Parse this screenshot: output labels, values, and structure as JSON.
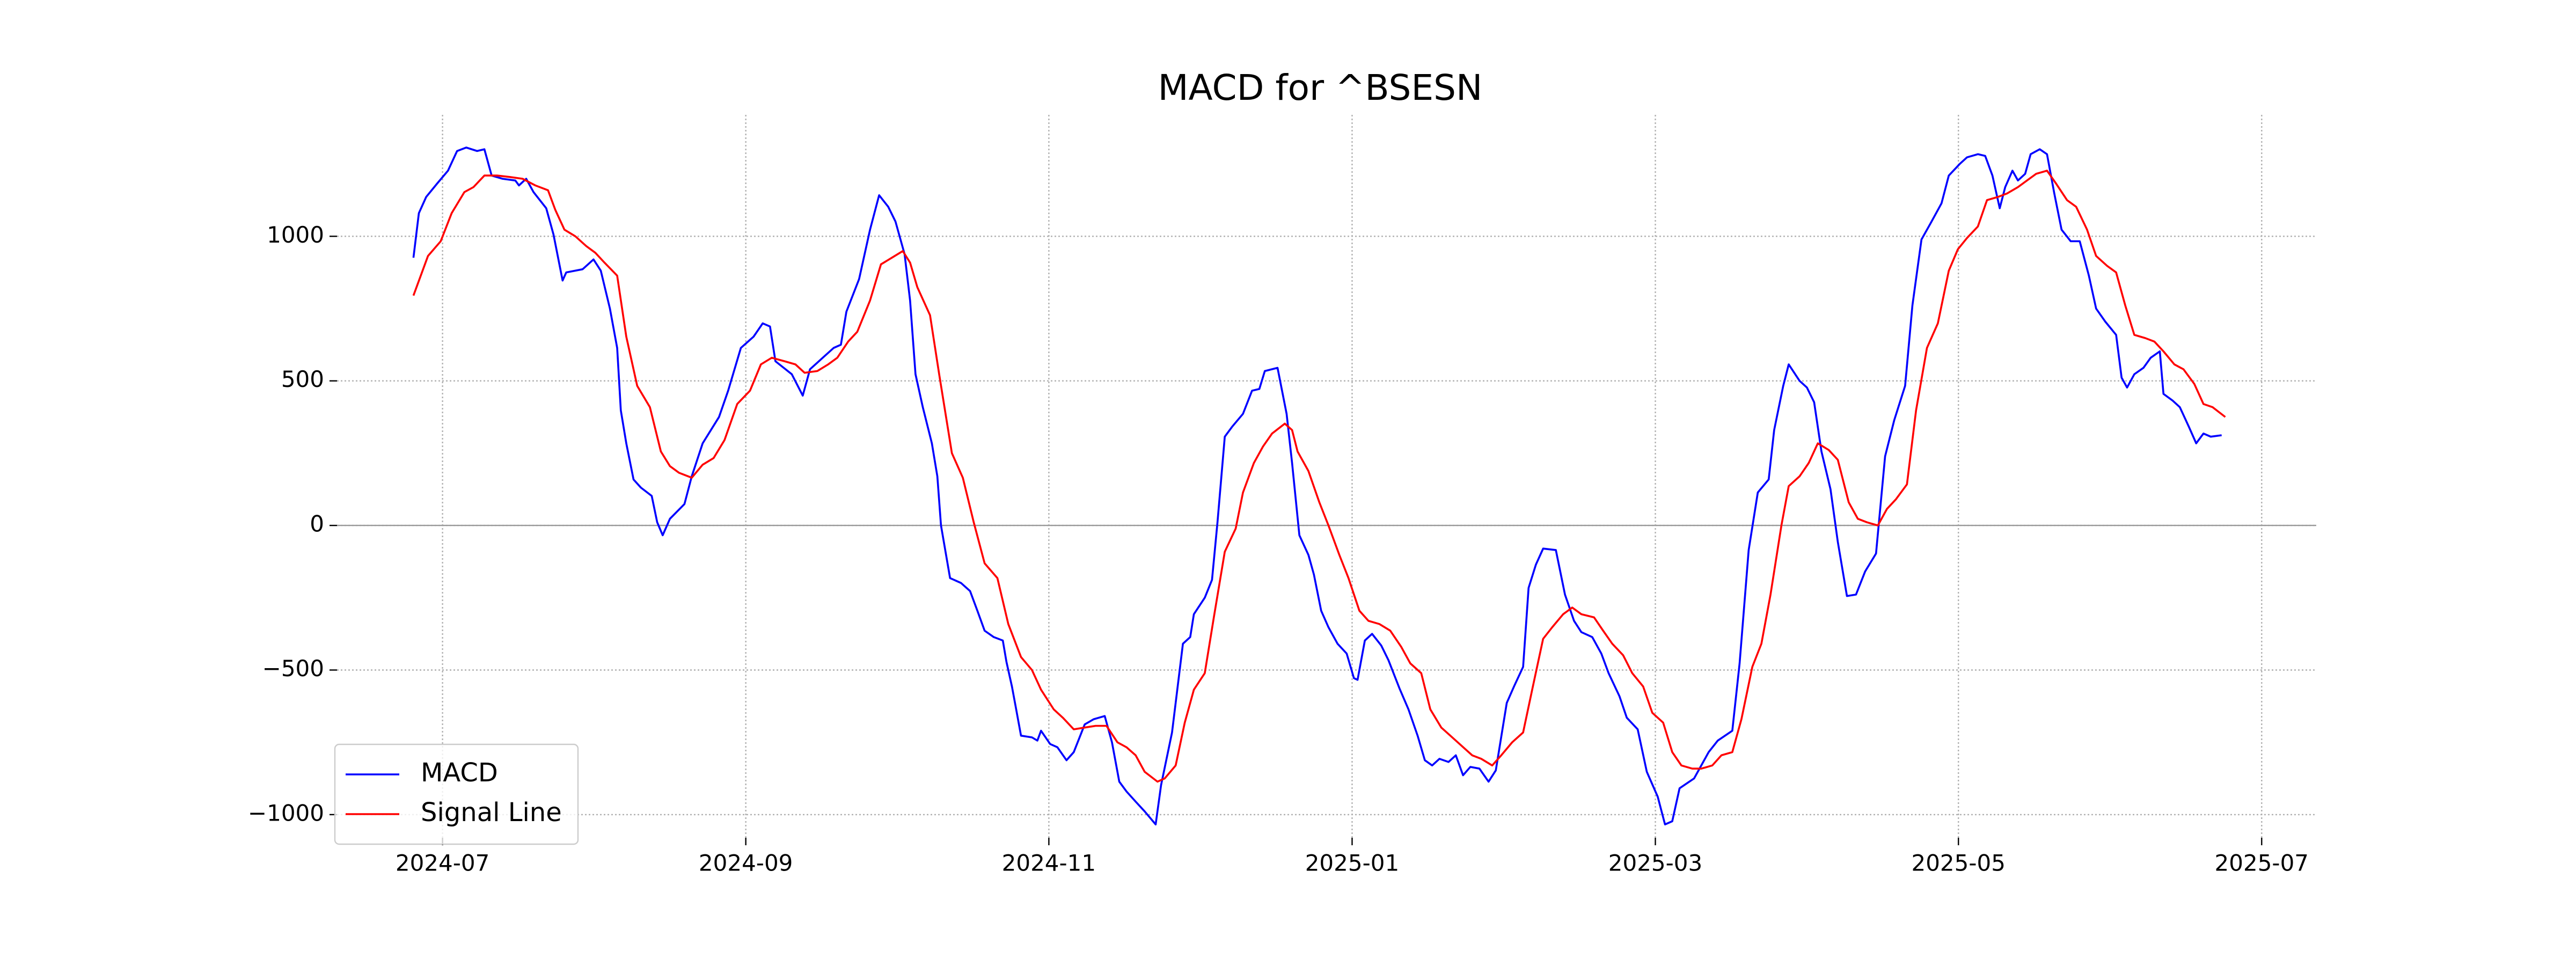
{
  "chart_data": {
    "type": "line",
    "title": "MACD for ^BSESN",
    "xlim": [
      2024.442,
      2025.53
    ],
    "xticks": [
      {
        "value": 2024.5,
        "label": "2024-07"
      },
      {
        "value": 2024.6667,
        "label": "2024-09"
      },
      {
        "value": 2024.8333,
        "label": "2024-11"
      },
      {
        "value": 2025.0,
        "label": "2025-01"
      },
      {
        "value": 2025.1667,
        "label": "2025-03"
      },
      {
        "value": 2025.3333,
        "label": "2025-05"
      },
      {
        "value": 2025.5,
        "label": "2025-07"
      }
    ],
    "ylim": [
      -1080,
      1420
    ],
    "yticks": [
      {
        "value": -1000,
        "label": "−1000"
      },
      {
        "value": -500,
        "label": "−500"
      },
      0,
      500,
      1000
    ],
    "grid": true,
    "zero_line": true,
    "legend_loc": "lower left",
    "series": [
      {
        "name": "MACD",
        "color": "#0000ff",
        "x": [
          2024.484,
          2024.487,
          2024.491,
          2024.497,
          2024.503,
          2024.508,
          2024.513,
          2024.519,
          2024.523,
          2024.527,
          2024.533,
          2024.54,
          2024.542,
          2024.546,
          2024.55,
          2024.557,
          2024.561,
          2024.566,
          2024.568,
          2024.577,
          2024.583,
          2024.587,
          2024.592,
          2024.596,
          2024.598,
          2024.601,
          2024.605,
          2024.609,
          2024.615,
          2024.618,
          2024.621,
          2024.625,
          2024.633,
          2024.637,
          2024.643,
          2024.652,
          2024.657,
          2024.664,
          2024.671,
          2024.676,
          2024.68,
          2024.683,
          2024.692,
          2024.698,
          2024.702,
          2024.709,
          2024.715,
          2024.719,
          2024.722,
          2024.729,
          2024.735,
          2024.74,
          2024.745,
          2024.749,
          2024.754,
          2024.757,
          2024.76,
          2024.764,
          2024.769,
          2024.772,
          2024.774,
          2024.779,
          2024.785,
          2024.79,
          2024.794,
          2024.798,
          2024.803,
          2024.808,
          2024.81,
          2024.813,
          2024.815,
          2024.818,
          2024.824,
          2024.827,
          2024.829,
          2024.834,
          2024.838,
          2024.843,
          2024.847,
          2024.853,
          2024.858,
          2024.864,
          2024.868,
          2024.872,
          2024.876,
          2024.881,
          2024.886,
          2024.892,
          2024.895,
          2024.901,
          2024.907,
          2024.911,
          2024.913,
          2024.919,
          2024.923,
          2024.926,
          2024.93,
          2024.934,
          2024.94,
          2024.945,
          2024.949,
          2024.952,
          2024.959,
          2024.964,
          2024.967,
          2024.971,
          2024.976,
          2024.979,
          2024.983,
          2024.987,
          2024.992,
          2024.997,
          2025.001,
          2025.003,
          2025.007,
          2025.011,
          2025.016,
          2025.02,
          2025.026,
          2025.031,
          2025.036,
          2025.04,
          2025.044,
          2025.048,
          2025.053,
          2025.057,
          2025.061,
          2025.065,
          2025.07,
          2025.075,
          2025.079,
          2025.085,
          2025.089,
          2025.094,
          2025.097,
          2025.101,
          2025.105,
          2025.112,
          2025.117,
          2025.122,
          2025.126,
          2025.132,
          2025.137,
          2025.141,
          2025.147,
          2025.151,
          2025.157,
          2025.162,
          2025.168,
          2025.172,
          2025.176,
          2025.18,
          2025.188,
          2025.196,
          2025.201,
          2025.209,
          2025.213,
          2025.218,
          2025.223,
          2025.229,
          2025.232,
          2025.237,
          2025.24,
          2025.246,
          2025.25,
          2025.254,
          2025.258,
          2025.263,
          2025.267,
          2025.272,
          2025.277,
          2025.282,
          2025.288,
          2025.293,
          2025.298,
          2025.304,
          2025.308,
          2025.313,
          2025.318,
          2025.324,
          2025.328,
          2025.334,
          2025.338,
          2025.344,
          2025.348,
          2025.352,
          2025.356,
          2025.359,
          2025.363,
          2025.366,
          2025.37,
          2025.373,
          2025.378,
          2025.382,
          2025.386,
          2025.39,
          2025.395,
          2025.4,
          2025.405,
          2025.409,
          2025.414,
          2025.42,
          2025.423,
          2025.426,
          2025.43,
          2025.435,
          2025.439,
          2025.444,
          2025.446,
          2025.451,
          2025.455,
          2025.46,
          2025.464,
          2025.468,
          2025.472,
          2025.478
        ],
        "values": [
          926,
          1080,
          1136,
          1182,
          1227,
          1295,
          1307,
          1295,
          1301,
          1210,
          1199,
          1193,
          1176,
          1199,
          1153,
          1097,
          1006,
          847,
          875,
          886,
          920,
          881,
          750,
          614,
          398,
          284,
          159,
          131,
          102,
          11,
          -34,
          23,
          74,
          170,
          284,
          375,
          466,
          614,
          653,
          699,
          688,
          568,
          523,
          449,
          540,
          580,
          614,
          625,
          739,
          852,
          1023,
          1142,
          1102,
          1051,
          938,
          778,
          523,
          409,
          284,
          170,
          0,
          -182,
          -199,
          -227,
          -295,
          -364,
          -386,
          -398,
          -472,
          -557,
          -625,
          -727,
          -733,
          -744,
          -710,
          -756,
          -767,
          -812,
          -784,
          -688,
          -670,
          -659,
          -750,
          -886,
          -920,
          -955,
          -989,
          -1034,
          -898,
          -716,
          -409,
          -386,
          -307,
          -250,
          -188,
          11,
          307,
          341,
          386,
          466,
          472,
          534,
          545,
          386,
          216,
          -34,
          -102,
          -170,
          -295,
          -352,
          -409,
          -443,
          -528,
          -534,
          -398,
          -375,
          -415,
          -466,
          -563,
          -636,
          -727,
          -812,
          -830,
          -807,
          -818,
          -795,
          -864,
          -835,
          -841,
          -886,
          -847,
          -614,
          -557,
          -489,
          -216,
          -136,
          -80,
          -85,
          -239,
          -330,
          -369,
          -386,
          -443,
          -511,
          -591,
          -665,
          -705,
          -852,
          -938,
          -1034,
          -1023,
          -909,
          -875,
          -784,
          -744,
          -710,
          -477,
          -85,
          114,
          159,
          330,
          483,
          557,
          500,
          477,
          426,
          256,
          125,
          -57,
          -244,
          -239,
          -159,
          -97,
          239,
          364,
          483,
          761,
          989,
          1045,
          1114,
          1210,
          1250,
          1273,
          1284,
          1278,
          1210,
          1097,
          1170,
          1227,
          1193,
          1216,
          1284,
          1301,
          1284,
          1148,
          1023,
          983,
          983,
          864,
          750,
          705,
          659,
          511,
          477,
          523,
          545,
          580,
          602,
          455,
          432,
          409,
          341,
          284,
          318,
          307,
          312
        ]
      },
      {
        "name": "Signal Line",
        "color": "#ff0000",
        "x": [
          2024.484,
          2024.492,
          2024.499,
          2024.505,
          2024.512,
          2024.517,
          2024.523,
          2024.53,
          2024.537,
          2024.544,
          2024.551,
          2024.558,
          2024.562,
          2024.567,
          2024.573,
          2024.579,
          2024.584,
          2024.589,
          2024.596,
          2024.601,
          2024.607,
          2024.614,
          2024.62,
          2024.625,
          2024.63,
          2024.637,
          2024.643,
          2024.649,
          2024.655,
          2024.662,
          2024.669,
          2024.675,
          2024.681,
          2024.688,
          2024.694,
          2024.699,
          2024.706,
          2024.712,
          2024.717,
          2024.723,
          2024.728,
          2024.735,
          2024.741,
          2024.747,
          2024.753,
          2024.757,
          2024.761,
          2024.768,
          2024.773,
          2024.78,
          2024.786,
          2024.792,
          2024.798,
          2024.805,
          2024.811,
          2024.818,
          2024.824,
          2024.829,
          2024.836,
          2024.841,
          2024.847,
          2024.853,
          2024.859,
          2024.865,
          2024.871,
          2024.876,
          2024.881,
          2024.886,
          2024.893,
          2024.897,
          2024.903,
          2024.908,
          2024.913,
          2024.919,
          2024.924,
          2024.93,
          2024.936,
          2024.94,
          2024.946,
          2024.951,
          2024.956,
          2024.963,
          2024.967,
          2024.97,
          2024.976,
          2024.982,
          2024.987,
          2024.993,
          2024.998,
          2025.004,
          2025.009,
          2025.015,
          2025.021,
          2025.027,
          2025.032,
          2025.038,
          2025.043,
          2025.049,
          2025.054,
          2025.06,
          2025.066,
          2025.071,
          2025.077,
          2025.082,
          2025.088,
          2025.094,
          2025.099,
          2025.105,
          2025.11,
          2025.116,
          2025.121,
          2025.126,
          2025.133,
          2025.138,
          2025.143,
          2025.149,
          2025.154,
          2025.16,
          2025.165,
          2025.171,
          2025.176,
          2025.181,
          2025.187,
          2025.192,
          2025.198,
          2025.203,
          2025.209,
          2025.214,
          2025.22,
          2025.225,
          2025.23,
          2025.236,
          2025.24,
          2025.246,
          2025.251,
          2025.256,
          2025.262,
          2025.267,
          2025.273,
          2025.278,
          2025.283,
          2025.289,
          2025.294,
          2025.299,
          2025.305,
          2025.31,
          2025.316,
          2025.322,
          2025.328,
          2025.333,
          2025.338,
          2025.344,
          2025.349,
          2025.355,
          2025.36,
          2025.366,
          2025.371,
          2025.376,
          2025.382,
          2025.387,
          2025.393,
          2025.398,
          2025.404,
          2025.409,
          2025.415,
          2025.42,
          2025.425,
          2025.43,
          2025.436,
          2025.441,
          2025.446,
          2025.452,
          2025.457,
          2025.463,
          2025.468,
          2025.473,
          2025.48
        ],
        "values": [
          795,
          932,
          983,
          1080,
          1153,
          1170,
          1210,
          1210,
          1205,
          1199,
          1176,
          1159,
          1091,
          1023,
          1000,
          966,
          943,
          909,
          864,
          653,
          483,
          409,
          256,
          205,
          182,
          165,
          210,
          233,
          295,
          420,
          466,
          557,
          580,
          568,
          557,
          528,
          534,
          557,
          580,
          636,
          670,
          778,
          903,
          926,
          949,
          909,
          824,
          727,
          523,
          250,
          165,
          11,
          -131,
          -182,
          -341,
          -455,
          -500,
          -568,
          -636,
          -665,
          -705,
          -699,
          -693,
          -693,
          -750,
          -767,
          -795,
          -852,
          -886,
          -875,
          -830,
          -682,
          -568,
          -511,
          -318,
          -91,
          -11,
          114,
          216,
          273,
          318,
          352,
          330,
          256,
          188,
          80,
          0,
          -102,
          -182,
          -295,
          -330,
          -341,
          -364,
          -420,
          -477,
          -511,
          -636,
          -699,
          -727,
          -761,
          -795,
          -807,
          -830,
          -795,
          -750,
          -716,
          -568,
          -392,
          -352,
          -307,
          -284,
          -307,
          -318,
          -364,
          -409,
          -449,
          -511,
          -557,
          -648,
          -682,
          -784,
          -830,
          -841,
          -841,
          -830,
          -795,
          -784,
          -670,
          -489,
          -409,
          -239,
          0,
          136,
          170,
          216,
          284,
          261,
          227,
          80,
          23,
          11,
          0,
          57,
          91,
          142,
          398,
          614,
          699,
          881,
          955,
          994,
          1034,
          1125,
          1136,
          1148,
          1170,
          1193,
          1216,
          1227,
          1182,
          1125,
          1102,
          1023,
          932,
          898,
          875,
          761,
          659,
          648,
          636,
          602,
          557,
          540,
          489,
          420,
          409,
          375
        ]
      }
    ]
  }
}
